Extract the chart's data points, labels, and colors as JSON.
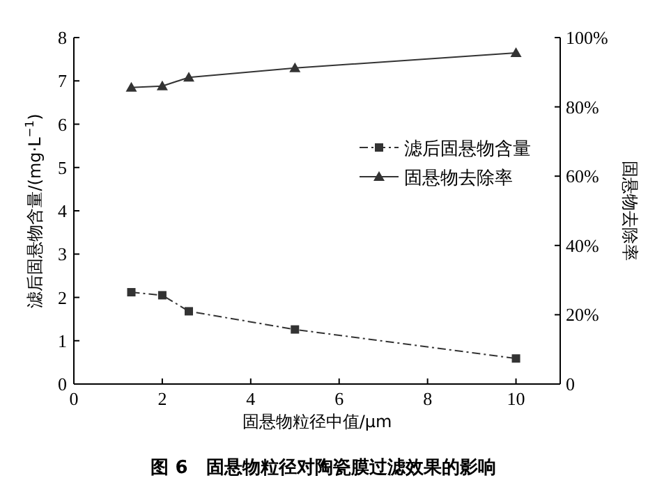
{
  "chart_data": {
    "type": "line",
    "title": "图 6　固悬物粒径对陶瓷膜过滤效果的影响",
    "xlabel": "固悬物粒径中值/μm",
    "ylabel": "滤后固悬物含量/(mg·L$^{−1}$)",
    "y2label": "固悬物去除率",
    "x": [
      1.3,
      2.0,
      2.6,
      5.0,
      10.0
    ],
    "series": [
      {
        "name": "滤后固悬物含量",
        "color": "#333333",
        "values": [
          2.12,
          2.05,
          1.68,
          1.26,
          0.59
        ],
        "marker": "square",
        "line_style": "dashdot"
      },
      {
        "name": "固悬物去除率",
        "color": "#333333",
        "values": [
          85.6,
          86.0,
          88.5,
          91.2,
          95.6
        ],
        "marker": "triangle",
        "line_style": "solid",
        "axis": "y2"
      }
    ],
    "xlim": [
      0,
      11
    ],
    "xticks": [
      0,
      2,
      4,
      6,
      8,
      10
    ],
    "ylim": [
      0,
      8
    ],
    "yticks": [
      0,
      1,
      2,
      3,
      4,
      5,
      6,
      7,
      8
    ],
    "y2lim": [
      0,
      100
    ],
    "y2ticks": [
      {
        "value": 0,
        "label": "0"
      },
      {
        "value": 20,
        "label": "20%"
      },
      {
        "value": 40,
        "label": "40%"
      },
      {
        "value": 60,
        "label": "60%"
      },
      {
        "value": 80,
        "label": "80%"
      },
      {
        "value": 100,
        "label": "100%"
      }
    ],
    "legend": "right",
    "grid": false
  }
}
